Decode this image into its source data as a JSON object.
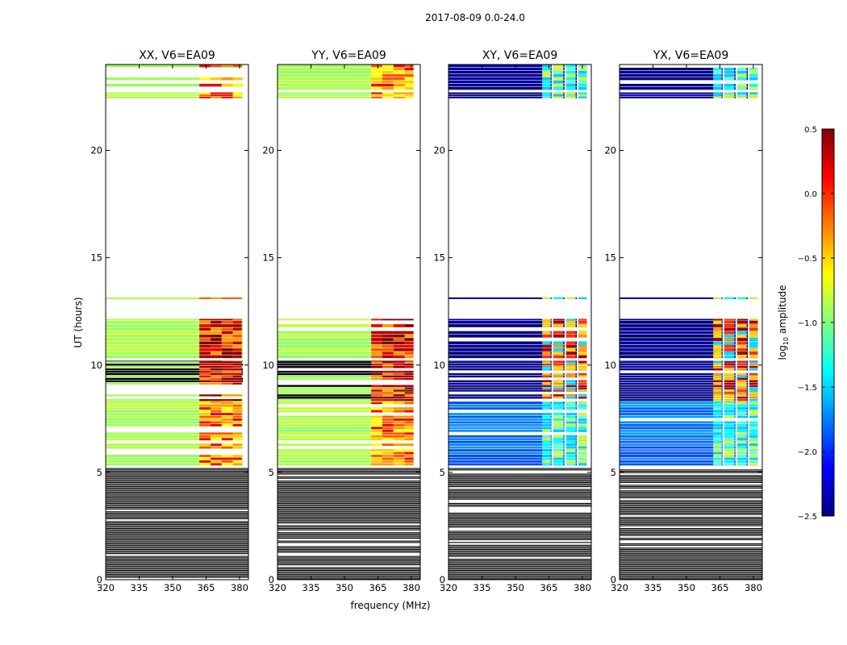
{
  "figure": {
    "suptitle": "2017-08-09 0.0-24.0",
    "ylabel": "UT (hours)",
    "xlabel": "frequency (MHz)"
  },
  "chart_data": {
    "type": "heatmap",
    "x_ticks": [
      "320",
      "335",
      "350",
      "365",
      "380"
    ],
    "y_ticks": [
      "0",
      "5",
      "10",
      "15",
      "20"
    ],
    "xlim": [
      320,
      384
    ],
    "ylim": [
      0,
      24
    ],
    "panels": [
      {
        "title": "XX, V6=EA09",
        "kind": "auto"
      },
      {
        "title": "YY, V6=EA09",
        "kind": "auto"
      },
      {
        "title": "XY, V6=EA09",
        "kind": "cross"
      },
      {
        "title": "YX, V6=EA09",
        "kind": "cross"
      }
    ],
    "colorbar": {
      "label_main": "log",
      "label_sub": "10",
      "label_tail": " amplitude",
      "range": [
        -2.5,
        0.5
      ],
      "ticks": [
        "0.5",
        "0.0",
        "−0.5",
        "−1.0",
        "−1.5",
        "−2.0",
        "−2.5"
      ],
      "tick_values": [
        0.5,
        0.0,
        -0.5,
        -1.0,
        -1.5,
        -2.0,
        -2.5
      ],
      "colors": [
        "#00007f",
        "#0000ff",
        "#007fff",
        "#00ffff",
        "#7fff7f",
        "#ffff00",
        "#ff7f00",
        "#ff0000",
        "#7f0000"
      ]
    }
  }
}
